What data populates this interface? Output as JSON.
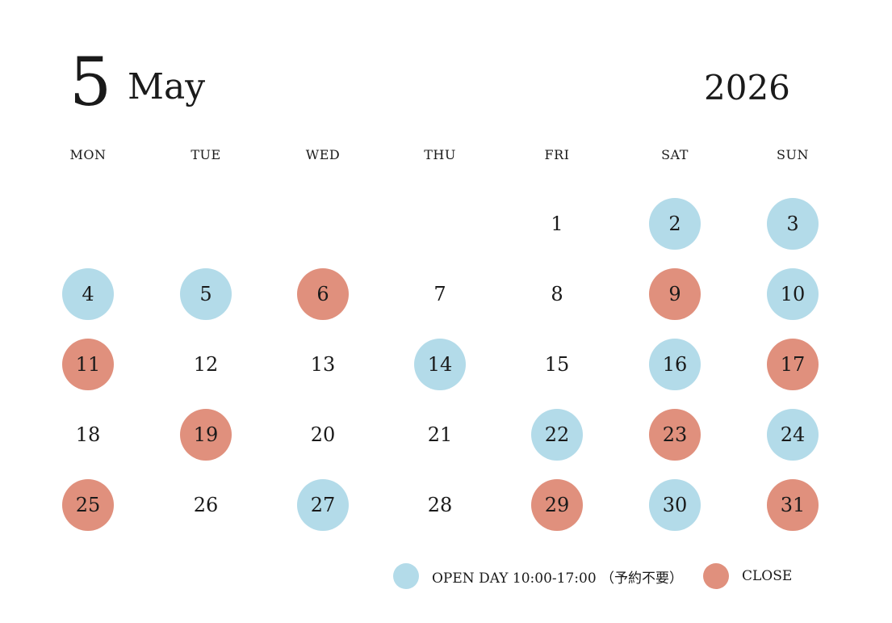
{
  "header": {
    "month_number": "5",
    "month_name": "May",
    "year": "2026"
  },
  "weekdays": [
    "MON",
    "TUE",
    "WED",
    "THU",
    "FRI",
    "SAT",
    "SUN"
  ],
  "colors": {
    "open": "#b3dbe9",
    "close": "#e0907d"
  },
  "calendar": {
    "first_weekday_index": 4,
    "days": [
      {
        "day": "1",
        "status": "none"
      },
      {
        "day": "2",
        "status": "open"
      },
      {
        "day": "3",
        "status": "open"
      },
      {
        "day": "4",
        "status": "open"
      },
      {
        "day": "5",
        "status": "open"
      },
      {
        "day": "6",
        "status": "close"
      },
      {
        "day": "7",
        "status": "none"
      },
      {
        "day": "8",
        "status": "none"
      },
      {
        "day": "9",
        "status": "close"
      },
      {
        "day": "10",
        "status": "open"
      },
      {
        "day": "11",
        "status": "close"
      },
      {
        "day": "12",
        "status": "none"
      },
      {
        "day": "13",
        "status": "none"
      },
      {
        "day": "14",
        "status": "open"
      },
      {
        "day": "15",
        "status": "none"
      },
      {
        "day": "16",
        "status": "open"
      },
      {
        "day": "17",
        "status": "close"
      },
      {
        "day": "18",
        "status": "none"
      },
      {
        "day": "19",
        "status": "close"
      },
      {
        "day": "20",
        "status": "none"
      },
      {
        "day": "21",
        "status": "none"
      },
      {
        "day": "22",
        "status": "open"
      },
      {
        "day": "23",
        "status": "close"
      },
      {
        "day": "24",
        "status": "open"
      },
      {
        "day": "25",
        "status": "close"
      },
      {
        "day": "26",
        "status": "none"
      },
      {
        "day": "27",
        "status": "open"
      },
      {
        "day": "28",
        "status": "none"
      },
      {
        "day": "29",
        "status": "close"
      },
      {
        "day": "30",
        "status": "open"
      },
      {
        "day": "31",
        "status": "close"
      }
    ]
  },
  "legend": {
    "open_label": "OPEN DAY 10:00-17:00 （予約不要）",
    "close_label": "CLOSE"
  }
}
